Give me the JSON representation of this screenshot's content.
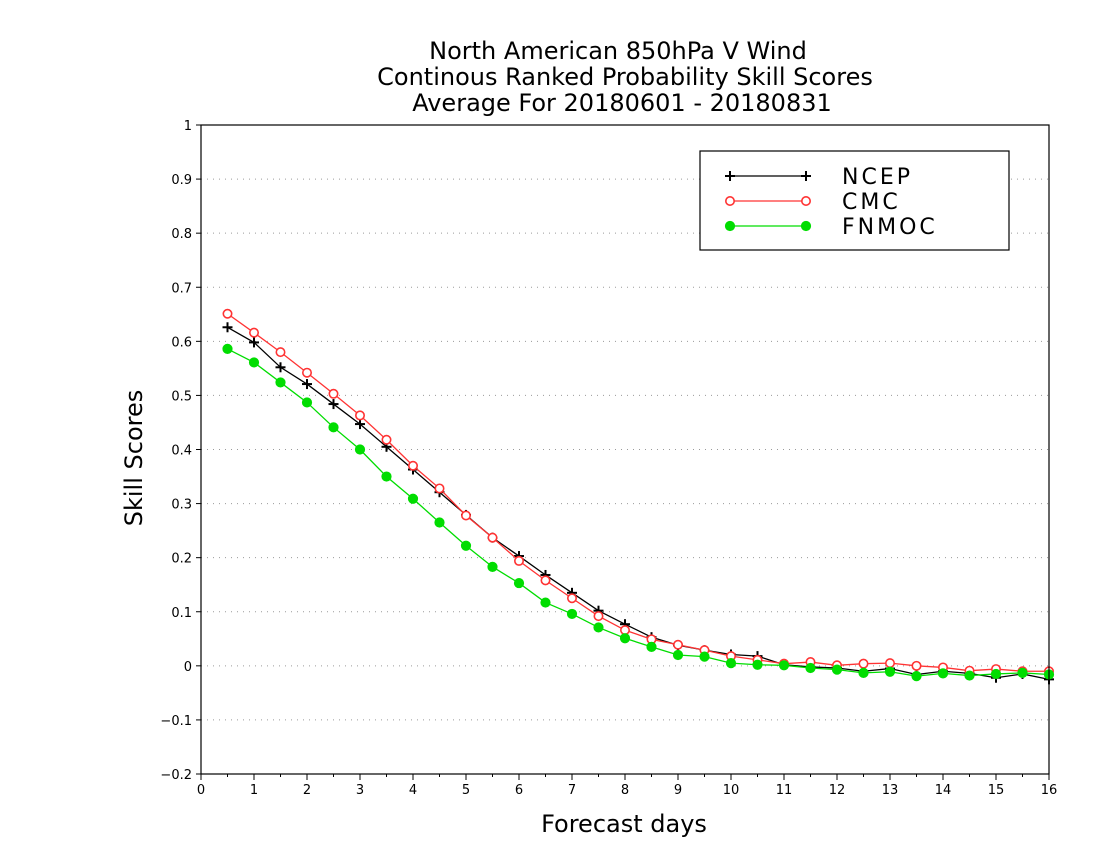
{
  "chart_data": {
    "type": "line",
    "title": [
      "North American 850hPa V Wind",
      "Continous Ranked Probability Skill Scores",
      "Average For 20180601 - 20180831"
    ],
    "xlabel": "Forecast days",
    "ylabel": "Skill Scores",
    "xlim": [
      0,
      16
    ],
    "ylim": [
      -0.2,
      1
    ],
    "xticks": [
      0,
      1,
      2,
      3,
      4,
      5,
      6,
      7,
      8,
      9,
      10,
      11,
      12,
      13,
      14,
      15,
      16
    ],
    "yticks": [
      -0.2,
      -0.1,
      0,
      0.1,
      0.2,
      0.3,
      0.4,
      0.5,
      0.6,
      0.7,
      0.8,
      0.9,
      1
    ],
    "ytick_labels": [
      "−0.2",
      "−0.1",
      "0",
      "0.1",
      "0.2",
      "0.3",
      "0.4",
      "0.5",
      "0.6",
      "0.7",
      "0.8",
      "0.9",
      "1"
    ],
    "grid": "horizontal dotted",
    "legend_position": "top-right",
    "x": [
      0.5,
      1,
      1.5,
      2,
      2.5,
      3,
      3.5,
      4,
      4.5,
      5,
      5.5,
      6,
      6.5,
      7,
      7.5,
      8,
      8.5,
      9,
      9.5,
      10,
      10.5,
      11,
      11.5,
      12,
      12.5,
      13,
      13.5,
      14,
      14.5,
      15,
      15.5,
      16
    ],
    "series": [
      {
        "name": "NCEP",
        "color": "#000000",
        "marker": "plus",
        "values": [
          0.626,
          0.598,
          0.552,
          0.521,
          0.484,
          0.447,
          0.405,
          0.363,
          0.321,
          0.279,
          0.237,
          0.203,
          0.168,
          0.135,
          0.102,
          0.077,
          0.053,
          0.038,
          0.029,
          0.021,
          0.018,
          0.002,
          -0.002,
          -0.004,
          -0.01,
          -0.005,
          -0.016,
          -0.01,
          -0.014,
          -0.022,
          -0.015,
          -0.025
        ]
      },
      {
        "name": "CMC",
        "color": "#ff3333",
        "marker": "open-circle",
        "values": [
          0.651,
          0.616,
          0.58,
          0.542,
          0.503,
          0.463,
          0.418,
          0.37,
          0.328,
          0.278,
          0.237,
          0.194,
          0.158,
          0.125,
          0.092,
          0.066,
          0.049,
          0.039,
          0.029,
          0.018,
          0.011,
          0.004,
          0.007,
          0.001,
          0.004,
          0.005,
          0.0,
          -0.003,
          -0.009,
          -0.006,
          -0.01,
          -0.01
        ]
      },
      {
        "name": "FNMOC",
        "color": "#00dd00",
        "marker": "filled-circle",
        "values": [
          0.586,
          0.561,
          0.524,
          0.487,
          0.441,
          0.4,
          0.35,
          0.309,
          0.265,
          0.222,
          0.183,
          0.153,
          0.117,
          0.096,
          0.071,
          0.051,
          0.035,
          0.02,
          0.017,
          0.005,
          0.002,
          0.001,
          -0.004,
          -0.007,
          -0.013,
          -0.011,
          -0.019,
          -0.014,
          -0.018,
          -0.015,
          -0.013,
          -0.016
        ]
      }
    ]
  }
}
